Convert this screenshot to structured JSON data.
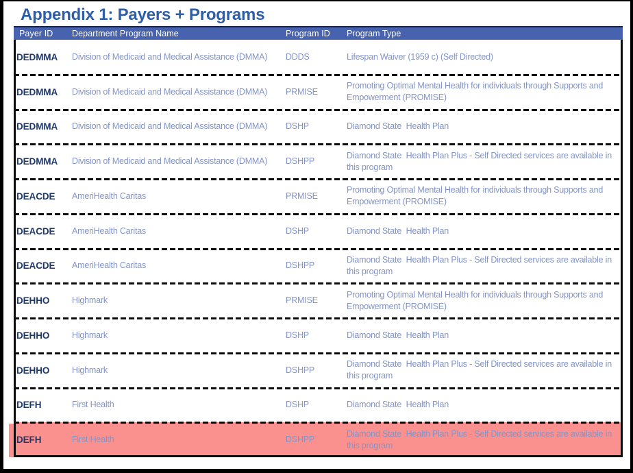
{
  "page": {
    "title": "Appendix 1: Payers + Programs"
  },
  "colors": {
    "header_bg": "#4763AF",
    "title": "#2E5EA9",
    "payer_text": "#1D3869",
    "cell_text": "#8394C7",
    "highlight": "#FB918F",
    "border": "#0C0C0C"
  },
  "table": {
    "columns": [
      "Payer ID",
      "Department Program Name",
      "Program ID",
      "Program Type"
    ],
    "rows": [
      {
        "payer_id": "DEDMMA",
        "department_program_name": "Division of Medicaid and Medical Assistance (DMMA)",
        "program_id": "DDDS",
        "program_type": "Lifespan Waiver (1959 c) (Self Directed)",
        "highlighted": false
      },
      {
        "payer_id": "DEDMMA",
        "department_program_name": "Division of Medicaid and Medical Assistance (DMMA)",
        "program_id": "PRMISE",
        "program_type": "Promoting Optimal Mental Health for individuals through Supports and Empowerment (PROMISE)",
        "highlighted": false
      },
      {
        "payer_id": "DEDMMA",
        "department_program_name": "Division of Medicaid and Medical Assistance (DMMA)",
        "program_id": "DSHP",
        "program_type": "Diamond State  Health Plan",
        "highlighted": false
      },
      {
        "payer_id": "DEDMMA",
        "department_program_name": "Division of Medicaid and Medical Assistance (DMMA)",
        "program_id": "DSHPP",
        "program_type": "Diamond State  Health Plan Plus - Self Directed services are available in this program",
        "highlighted": false
      },
      {
        "payer_id": "DEACDE",
        "department_program_name": "AmeriHealth Caritas",
        "program_id": "PRMISE",
        "program_type": "Promoting Optimal Mental Health for individuals through Supports and Empowerment (PROMISE)",
        "highlighted": false
      },
      {
        "payer_id": "DEACDE",
        "department_program_name": "AmeriHealth Caritas",
        "program_id": "DSHP",
        "program_type": "Diamond State  Health Plan",
        "highlighted": false
      },
      {
        "payer_id": "DEACDE",
        "department_program_name": "AmeriHealth Caritas",
        "program_id": "DSHPP",
        "program_type": "Diamond State  Health Plan Plus - Self Directed services are available in this program",
        "highlighted": false
      },
      {
        "payer_id": "DEHHO",
        "department_program_name": "Highmark",
        "program_id": "PRMISE",
        "program_type": "Promoting Optimal Mental Health for individuals through Supports and Empowerment (PROMISE)",
        "highlighted": false
      },
      {
        "payer_id": "DEHHO",
        "department_program_name": "Highmark",
        "program_id": "DSHP",
        "program_type": "Diamond State  Health Plan",
        "highlighted": false
      },
      {
        "payer_id": "DEHHO",
        "department_program_name": "Highmark",
        "program_id": "DSHPP",
        "program_type": "Diamond State  Health Plan Plus - Self Directed services are available in this program",
        "highlighted": false
      },
      {
        "payer_id": "DEFH",
        "department_program_name": "First Health",
        "program_id": "DSHP",
        "program_type": "Diamond State  Health Plan",
        "highlighted": false
      },
      {
        "payer_id": "DEFH",
        "department_program_name": "First Health",
        "program_id": "DSHPP",
        "program_type": "Diamond State  Health Plan Plus - Self Directed services are available in this program",
        "highlighted": true
      }
    ]
  }
}
